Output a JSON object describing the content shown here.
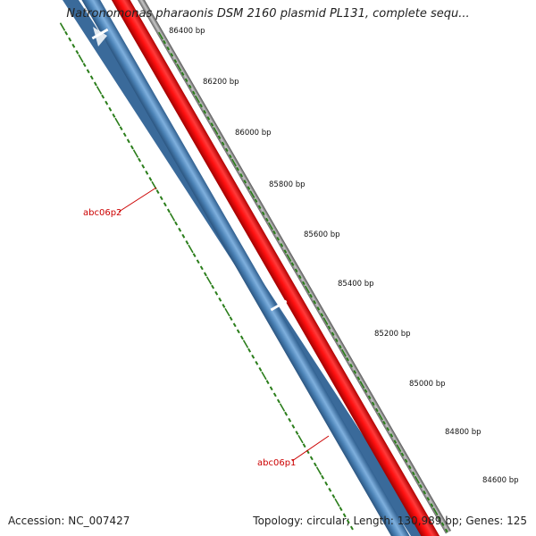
{
  "title": "Natronomonas pharaonis DSM 2160 plasmid PL131, complete sequ...",
  "footer": {
    "accession": "Accession: NC_007427",
    "summary": "Topology: circular; Length: 130,989 bp; Genes: 125"
  },
  "ruler": {
    "unit": "bp",
    "ticks": [
      {
        "label": "86400 bp",
        "pos": 86400
      },
      {
        "label": "86200 bp",
        "pos": 86200
      },
      {
        "label": "86000 bp",
        "pos": 86000
      },
      {
        "label": "85800 bp",
        "pos": 85800
      },
      {
        "label": "85600 bp",
        "pos": 85600
      },
      {
        "label": "85400 bp",
        "pos": 85400
      },
      {
        "label": "85200 bp",
        "pos": 85200
      },
      {
        "label": "85000 bp",
        "pos": 85000
      },
      {
        "label": "84800 bp",
        "pos": 84800
      },
      {
        "label": "84600 bp",
        "pos": 84600
      }
    ]
  },
  "genes": [
    {
      "name": "abc06p2",
      "strand": "minus",
      "color": "#e8000b"
    },
    {
      "name": "abc06p1",
      "strand": "minus",
      "color": "#e8000b"
    }
  ],
  "colors": {
    "forward_track": "#e8000b",
    "reverse_track": "#4a81b5",
    "backbone": "#8a8a8a",
    "ruler": "#2a7d1a",
    "label": "#cc0000"
  }
}
